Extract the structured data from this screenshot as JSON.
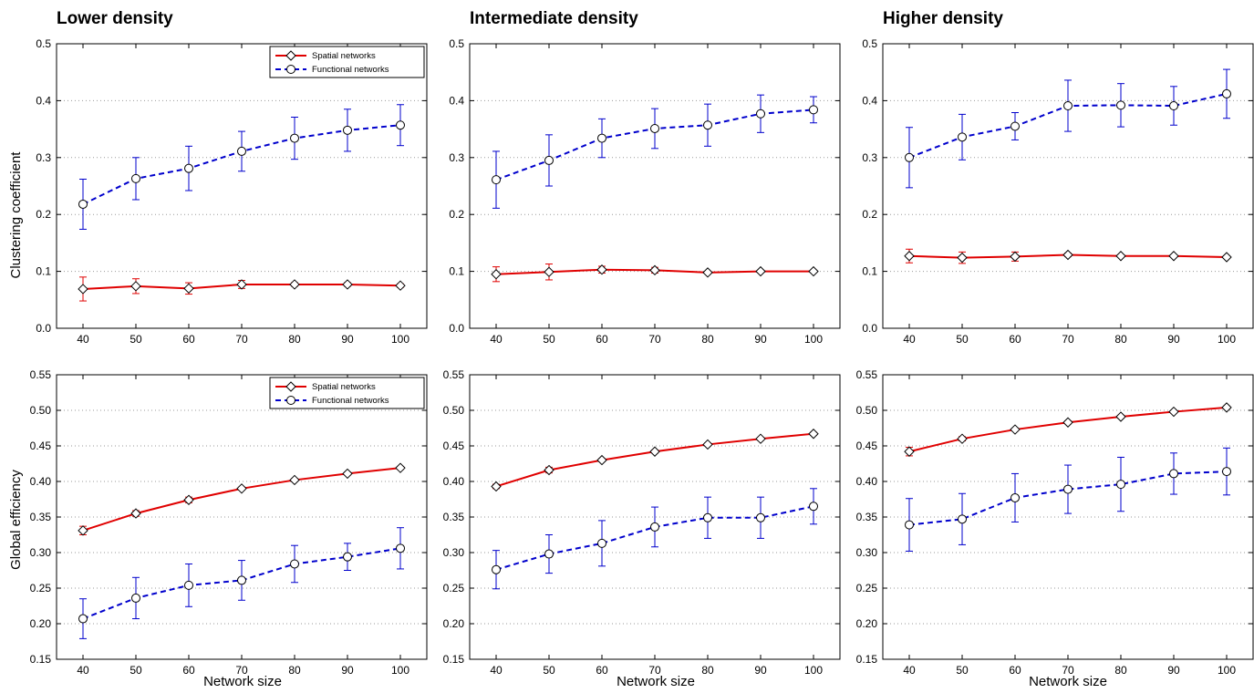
{
  "column_titles": [
    "Lower density",
    "Intermediate density",
    "Higher density"
  ],
  "row_ylabels": [
    "Clustering coefficient",
    "Global efficiency"
  ],
  "xlabel": "Network size",
  "legend": {
    "spatial": "Spatial networks",
    "functional": "Functional networks"
  },
  "colors": {
    "spatial": "#e00000",
    "functional": "#0000cc"
  },
  "chart_data": [
    {
      "type": "line",
      "column": "Lower density",
      "ylabel": "Clustering coefficient",
      "x": [
        40,
        50,
        60,
        70,
        80,
        90,
        100
      ],
      "ylim": [
        0.0,
        0.5
      ],
      "yticks": [
        "0.0",
        "0.1",
        "0.2",
        "0.3",
        "0.4",
        "0.5"
      ],
      "xticks": [
        "40",
        "50",
        "60",
        "70",
        "80",
        "90",
        "100"
      ],
      "legend": true,
      "grid": "horizontal dotted",
      "legend_position": "top-right",
      "series": [
        {
          "name": "Spatial networks",
          "style": "solid, diamond markers",
          "values": [
            0.069,
            0.074,
            0.07,
            0.077,
            0.077,
            0.077,
            0.075
          ],
          "errors": [
            0.021,
            0.013,
            0.01,
            0.007,
            0.003,
            0.003,
            0.003
          ]
        },
        {
          "name": "Functional networks",
          "style": "dashed, circle markers",
          "values": [
            0.218,
            0.263,
            0.281,
            0.311,
            0.334,
            0.348,
            0.357
          ],
          "errors": [
            0.044,
            0.037,
            0.039,
            0.035,
            0.037,
            0.037,
            0.036
          ]
        }
      ]
    },
    {
      "type": "line",
      "column": "Intermediate density",
      "ylabel": "",
      "x": [
        40,
        50,
        60,
        70,
        80,
        90,
        100
      ],
      "ylim": [
        0.0,
        0.5
      ],
      "yticks": [
        "0.0",
        "0.1",
        "0.2",
        "0.3",
        "0.4",
        "0.5"
      ],
      "xticks": [
        "40",
        "50",
        "60",
        "70",
        "80",
        "90",
        "100"
      ],
      "legend": false,
      "grid": "horizontal dotted",
      "series": [
        {
          "name": "Spatial networks",
          "style": "solid, diamond markers",
          "values": [
            0.095,
            0.099,
            0.103,
            0.102,
            0.098,
            0.1,
            0.1
          ],
          "errors": [
            0.013,
            0.014,
            0.006,
            0.005,
            0.002,
            0.002,
            0.002
          ]
        },
        {
          "name": "Functional networks",
          "style": "dashed, circle markers",
          "values": [
            0.261,
            0.295,
            0.334,
            0.351,
            0.357,
            0.377,
            0.384
          ],
          "errors": [
            0.05,
            0.045,
            0.034,
            0.035,
            0.037,
            0.033,
            0.023
          ]
        }
      ]
    },
    {
      "type": "line",
      "column": "Higher density",
      "ylabel": "",
      "x": [
        40,
        50,
        60,
        70,
        80,
        90,
        100
      ],
      "ylim": [
        0.0,
        0.5
      ],
      "yticks": [
        "0.0",
        "0.1",
        "0.2",
        "0.3",
        "0.4",
        "0.5"
      ],
      "xticks": [
        "40",
        "50",
        "60",
        "70",
        "80",
        "90",
        "100"
      ],
      "legend": false,
      "grid": "horizontal dotted",
      "series": [
        {
          "name": "Spatial networks",
          "style": "solid, diamond markers",
          "values": [
            0.127,
            0.124,
            0.126,
            0.129,
            0.127,
            0.127,
            0.125
          ],
          "errors": [
            0.012,
            0.01,
            0.008,
            0.003,
            0.002,
            0.002,
            0.002
          ]
        },
        {
          "name": "Functional networks",
          "style": "dashed, circle markers",
          "values": [
            0.3,
            0.336,
            0.355,
            0.391,
            0.392,
            0.391,
            0.412
          ],
          "errors": [
            0.053,
            0.04,
            0.024,
            0.045,
            0.038,
            0.034,
            0.043
          ]
        }
      ]
    },
    {
      "type": "line",
      "column": "Lower density",
      "ylabel": "Global efficiency",
      "x": [
        40,
        50,
        60,
        70,
        80,
        90,
        100
      ],
      "ylim": [
        0.15,
        0.55
      ],
      "yticks": [
        "0.15",
        "0.20",
        "0.25",
        "0.30",
        "0.35",
        "0.40",
        "0.45",
        "0.50",
        "0.55"
      ],
      "xticks": [
        "40",
        "50",
        "60",
        "70",
        "80",
        "90",
        "100"
      ],
      "legend": true,
      "grid": "horizontal dotted",
      "legend_position": "top-right",
      "series": [
        {
          "name": "Spatial networks",
          "style": "solid, diamond markers",
          "values": [
            0.331,
            0.355,
            0.374,
            0.39,
            0.402,
            0.411,
            0.419
          ],
          "errors": [
            0.006,
            0.004,
            0.004,
            0.002,
            0.002,
            0.002,
            0.002
          ]
        },
        {
          "name": "Functional networks",
          "style": "dashed, circle markers",
          "values": [
            0.207,
            0.236,
            0.254,
            0.261,
            0.284,
            0.294,
            0.306
          ],
          "errors": [
            0.028,
            0.029,
            0.03,
            0.028,
            0.026,
            0.019,
            0.029
          ]
        }
      ]
    },
    {
      "type": "line",
      "column": "Intermediate density",
      "ylabel": "",
      "x": [
        40,
        50,
        60,
        70,
        80,
        90,
        100
      ],
      "ylim": [
        0.15,
        0.55
      ],
      "yticks": [
        "0.15",
        "0.20",
        "0.25",
        "0.30",
        "0.35",
        "0.40",
        "0.45",
        "0.50",
        "0.55"
      ],
      "xticks": [
        "40",
        "50",
        "60",
        "70",
        "80",
        "90",
        "100"
      ],
      "legend": false,
      "grid": "horizontal dotted",
      "series": [
        {
          "name": "Spatial networks",
          "style": "solid, diamond markers",
          "values": [
            0.393,
            0.416,
            0.43,
            0.442,
            0.452,
            0.46,
            0.467
          ],
          "errors": [
            0.003,
            0.004,
            0.002,
            0.002,
            0.002,
            0.002,
            0.002
          ]
        },
        {
          "name": "Functional networks",
          "style": "dashed, circle markers",
          "values": [
            0.276,
            0.298,
            0.313,
            0.336,
            0.349,
            0.349,
            0.365
          ],
          "errors": [
            0.027,
            0.027,
            0.032,
            0.028,
            0.029,
            0.029,
            0.025
          ]
        }
      ]
    },
    {
      "type": "line",
      "column": "Higher density",
      "ylabel": "",
      "x": [
        40,
        50,
        60,
        70,
        80,
        90,
        100
      ],
      "ylim": [
        0.15,
        0.55
      ],
      "yticks": [
        "0.15",
        "0.20",
        "0.25",
        "0.30",
        "0.35",
        "0.40",
        "0.45",
        "0.50",
        "0.55"
      ],
      "xticks": [
        "40",
        "50",
        "60",
        "70",
        "80",
        "90",
        "100"
      ],
      "legend": false,
      "grid": "horizontal dotted",
      "series": [
        {
          "name": "Spatial networks",
          "style": "solid, diamond markers",
          "values": [
            0.442,
            0.46,
            0.473,
            0.483,
            0.491,
            0.498,
            0.504
          ],
          "errors": [
            0.006,
            0.003,
            0.002,
            0.002,
            0.002,
            0.002,
            0.002
          ]
        },
        {
          "name": "Functional networks",
          "style": "dashed, circle markers",
          "values": [
            0.339,
            0.347,
            0.377,
            0.389,
            0.396,
            0.411,
            0.414
          ],
          "errors": [
            0.037,
            0.036,
            0.034,
            0.034,
            0.038,
            0.029,
            0.033
          ]
        }
      ]
    }
  ]
}
